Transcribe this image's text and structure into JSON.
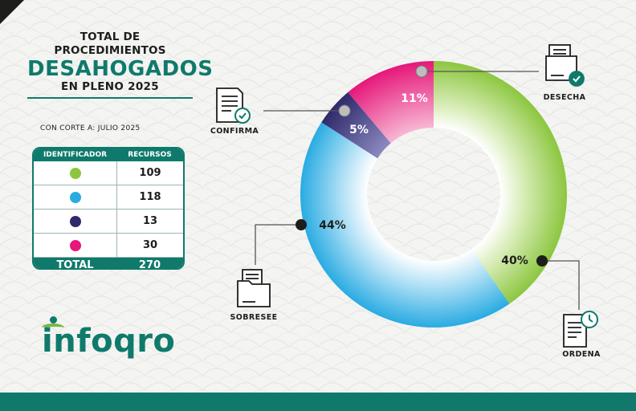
{
  "header": {
    "line1": "TOTAL DE PROCEDIMIENTOS",
    "line2": "DESAHOGADOS",
    "line3": "EN PLENO 2025",
    "cutoff": "CON CORTE A: JULIO 2025"
  },
  "table": {
    "col_id": "IDENTIFICADOR",
    "col_resources": "RECURSOS",
    "rows": [
      {
        "color": "#8cc63f",
        "value": "109"
      },
      {
        "color": "#29abe2",
        "value": "118"
      },
      {
        "color": "#2e2a6b",
        "value": "13"
      },
      {
        "color": "#e6177a",
        "value": "30"
      }
    ],
    "total_label": "TOTAL",
    "total_value": "270"
  },
  "brand": {
    "name": "infoqro"
  },
  "colors": {
    "accent": "#0f7a6b",
    "ordena": "#8cc63f",
    "sobresee": "#29abe2",
    "confirma": "#2e2a6b",
    "desecha": "#e6177a"
  },
  "chart_data": {
    "type": "pie",
    "donut": true,
    "title": "",
    "categories": [
      "ORDENA",
      "SOBRESEE",
      "CONFIRMA",
      "DESECHA"
    ],
    "values": [
      109,
      118,
      13,
      30
    ],
    "labels": [
      "40%",
      "44%",
      "5%",
      "11%"
    ],
    "colors": [
      "#8cc63f",
      "#29abe2",
      "#2e2a6b",
      "#e6177a"
    ],
    "icons": [
      "document-clock-icon",
      "folder-document-icon",
      "document-check-icon",
      "folder-check-icon"
    ],
    "legend": "table-left"
  }
}
